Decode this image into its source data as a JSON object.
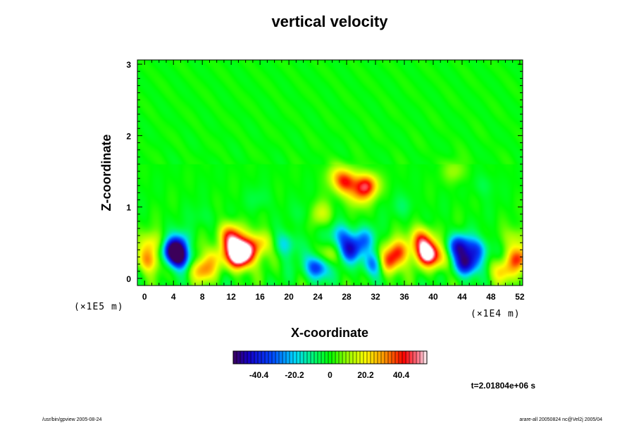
{
  "chart_data": {
    "type": "heatmap",
    "title": "vertical velocity",
    "xlabel": "X-coordinate",
    "ylabel": "Z-coordinate",
    "x_unit_left": "(×1E5 m)",
    "x_unit_right": "(×1E4 m)",
    "xlim": [
      -1,
      52.4
    ],
    "ylim": [
      -0.1,
      3.06
    ],
    "x_ticks": [
      0,
      4,
      8,
      12,
      16,
      20,
      24,
      28,
      32,
      36,
      40,
      44,
      48,
      52
    ],
    "x_tick_labels": [
      "0",
      "4",
      "8",
      "12",
      "16",
      "20",
      "24",
      "28",
      "32",
      "36",
      "40",
      "44",
      "48",
      "52"
    ],
    "y_ticks": [
      0,
      1,
      2,
      3
    ],
    "y_tick_labels": [
      "0",
      "1",
      "2",
      "3"
    ],
    "colorbar": {
      "min": -55,
      "max": 55,
      "ticks": [
        -40.4,
        -20.2,
        0,
        20.2,
        40.4
      ],
      "tick_labels": [
        "-40.4",
        "-20.2",
        "0",
        "20.2",
        "40.4"
      ]
    },
    "time_label": "t=2.01804e+06 s",
    "cells": [
      {
        "x": 0.5,
        "z": 0.25,
        "w": 30
      },
      {
        "x": 1.2,
        "z": 0.48,
        "w": 22
      },
      {
        "x": 3.8,
        "z": 0.4,
        "w": -42
      },
      {
        "x": 4.8,
        "z": 0.3,
        "w": -50
      },
      {
        "x": 5.5,
        "z": 0.5,
        "w": -28
      },
      {
        "x": 6.5,
        "z": 0.45,
        "w": 18
      },
      {
        "x": 7.9,
        "z": 0.12,
        "w": 32
      },
      {
        "x": 9.8,
        "z": 0.3,
        "w": 16
      },
      {
        "x": 11.8,
        "z": 0.62,
        "w": 32
      },
      {
        "x": 12.6,
        "z": 0.45,
        "w": 40
      },
      {
        "x": 13.2,
        "z": 0.28,
        "w": 55
      },
      {
        "x": 14.5,
        "z": 0.4,
        "w": 28
      },
      {
        "x": 16.2,
        "z": 0.5,
        "w": 22
      },
      {
        "x": 19.5,
        "z": 0.48,
        "w": -20
      },
      {
        "x": 24.0,
        "z": 0.16,
        "w": -45
      },
      {
        "x": 24.3,
        "z": 0.9,
        "w": 18
      },
      {
        "x": 25.3,
        "z": 0.3,
        "w": 18
      },
      {
        "x": 27.2,
        "z": 0.6,
        "w": -25
      },
      {
        "x": 28.5,
        "z": 0.4,
        "w": -38
      },
      {
        "x": 30.5,
        "z": 0.55,
        "w": -22
      },
      {
        "x": 31.8,
        "z": 0.2,
        "w": -35
      },
      {
        "x": 27.9,
        "z": 1.35,
        "w": 35
      },
      {
        "x": 30.8,
        "z": 1.3,
        "w": 40
      },
      {
        "x": 29.5,
        "z": 1.15,
        "w": 18
      },
      {
        "x": 26.5,
        "z": 1.45,
        "w": 12
      },
      {
        "x": 33.8,
        "z": 0.22,
        "w": 40
      },
      {
        "x": 35.2,
        "z": 0.38,
        "w": 32
      },
      {
        "x": 38.3,
        "z": 0.55,
        "w": 35
      },
      {
        "x": 39.2,
        "z": 0.35,
        "w": 55
      },
      {
        "x": 41.0,
        "z": 0.25,
        "w": 18
      },
      {
        "x": 43.6,
        "z": 0.45,
        "w": -40
      },
      {
        "x": 44.6,
        "z": 0.2,
        "w": -50
      },
      {
        "x": 46.2,
        "z": 0.4,
        "w": -28
      },
      {
        "x": 49.5,
        "z": 0.1,
        "w": 25
      },
      {
        "x": 51.8,
        "z": 0.28,
        "w": 35
      },
      {
        "x": 51.5,
        "z": 0.55,
        "w": 15
      },
      {
        "x": 22.5,
        "z": 0.9,
        "w": -8
      },
      {
        "x": 16.0,
        "z": 1.1,
        "w": -6
      },
      {
        "x": 36.0,
        "z": 1.0,
        "w": -7
      },
      {
        "x": 8.0,
        "z": 0.85,
        "w": -6
      },
      {
        "x": 47.0,
        "z": 1.3,
        "w": -6
      },
      {
        "x": 43.0,
        "z": 1.5,
        "w": 10
      }
    ]
  },
  "footer": {
    "left": "/usr/bin/gpview 2005-08-24",
    "right": "arare-all 20050824 nc@Vel2j 2005/04"
  }
}
